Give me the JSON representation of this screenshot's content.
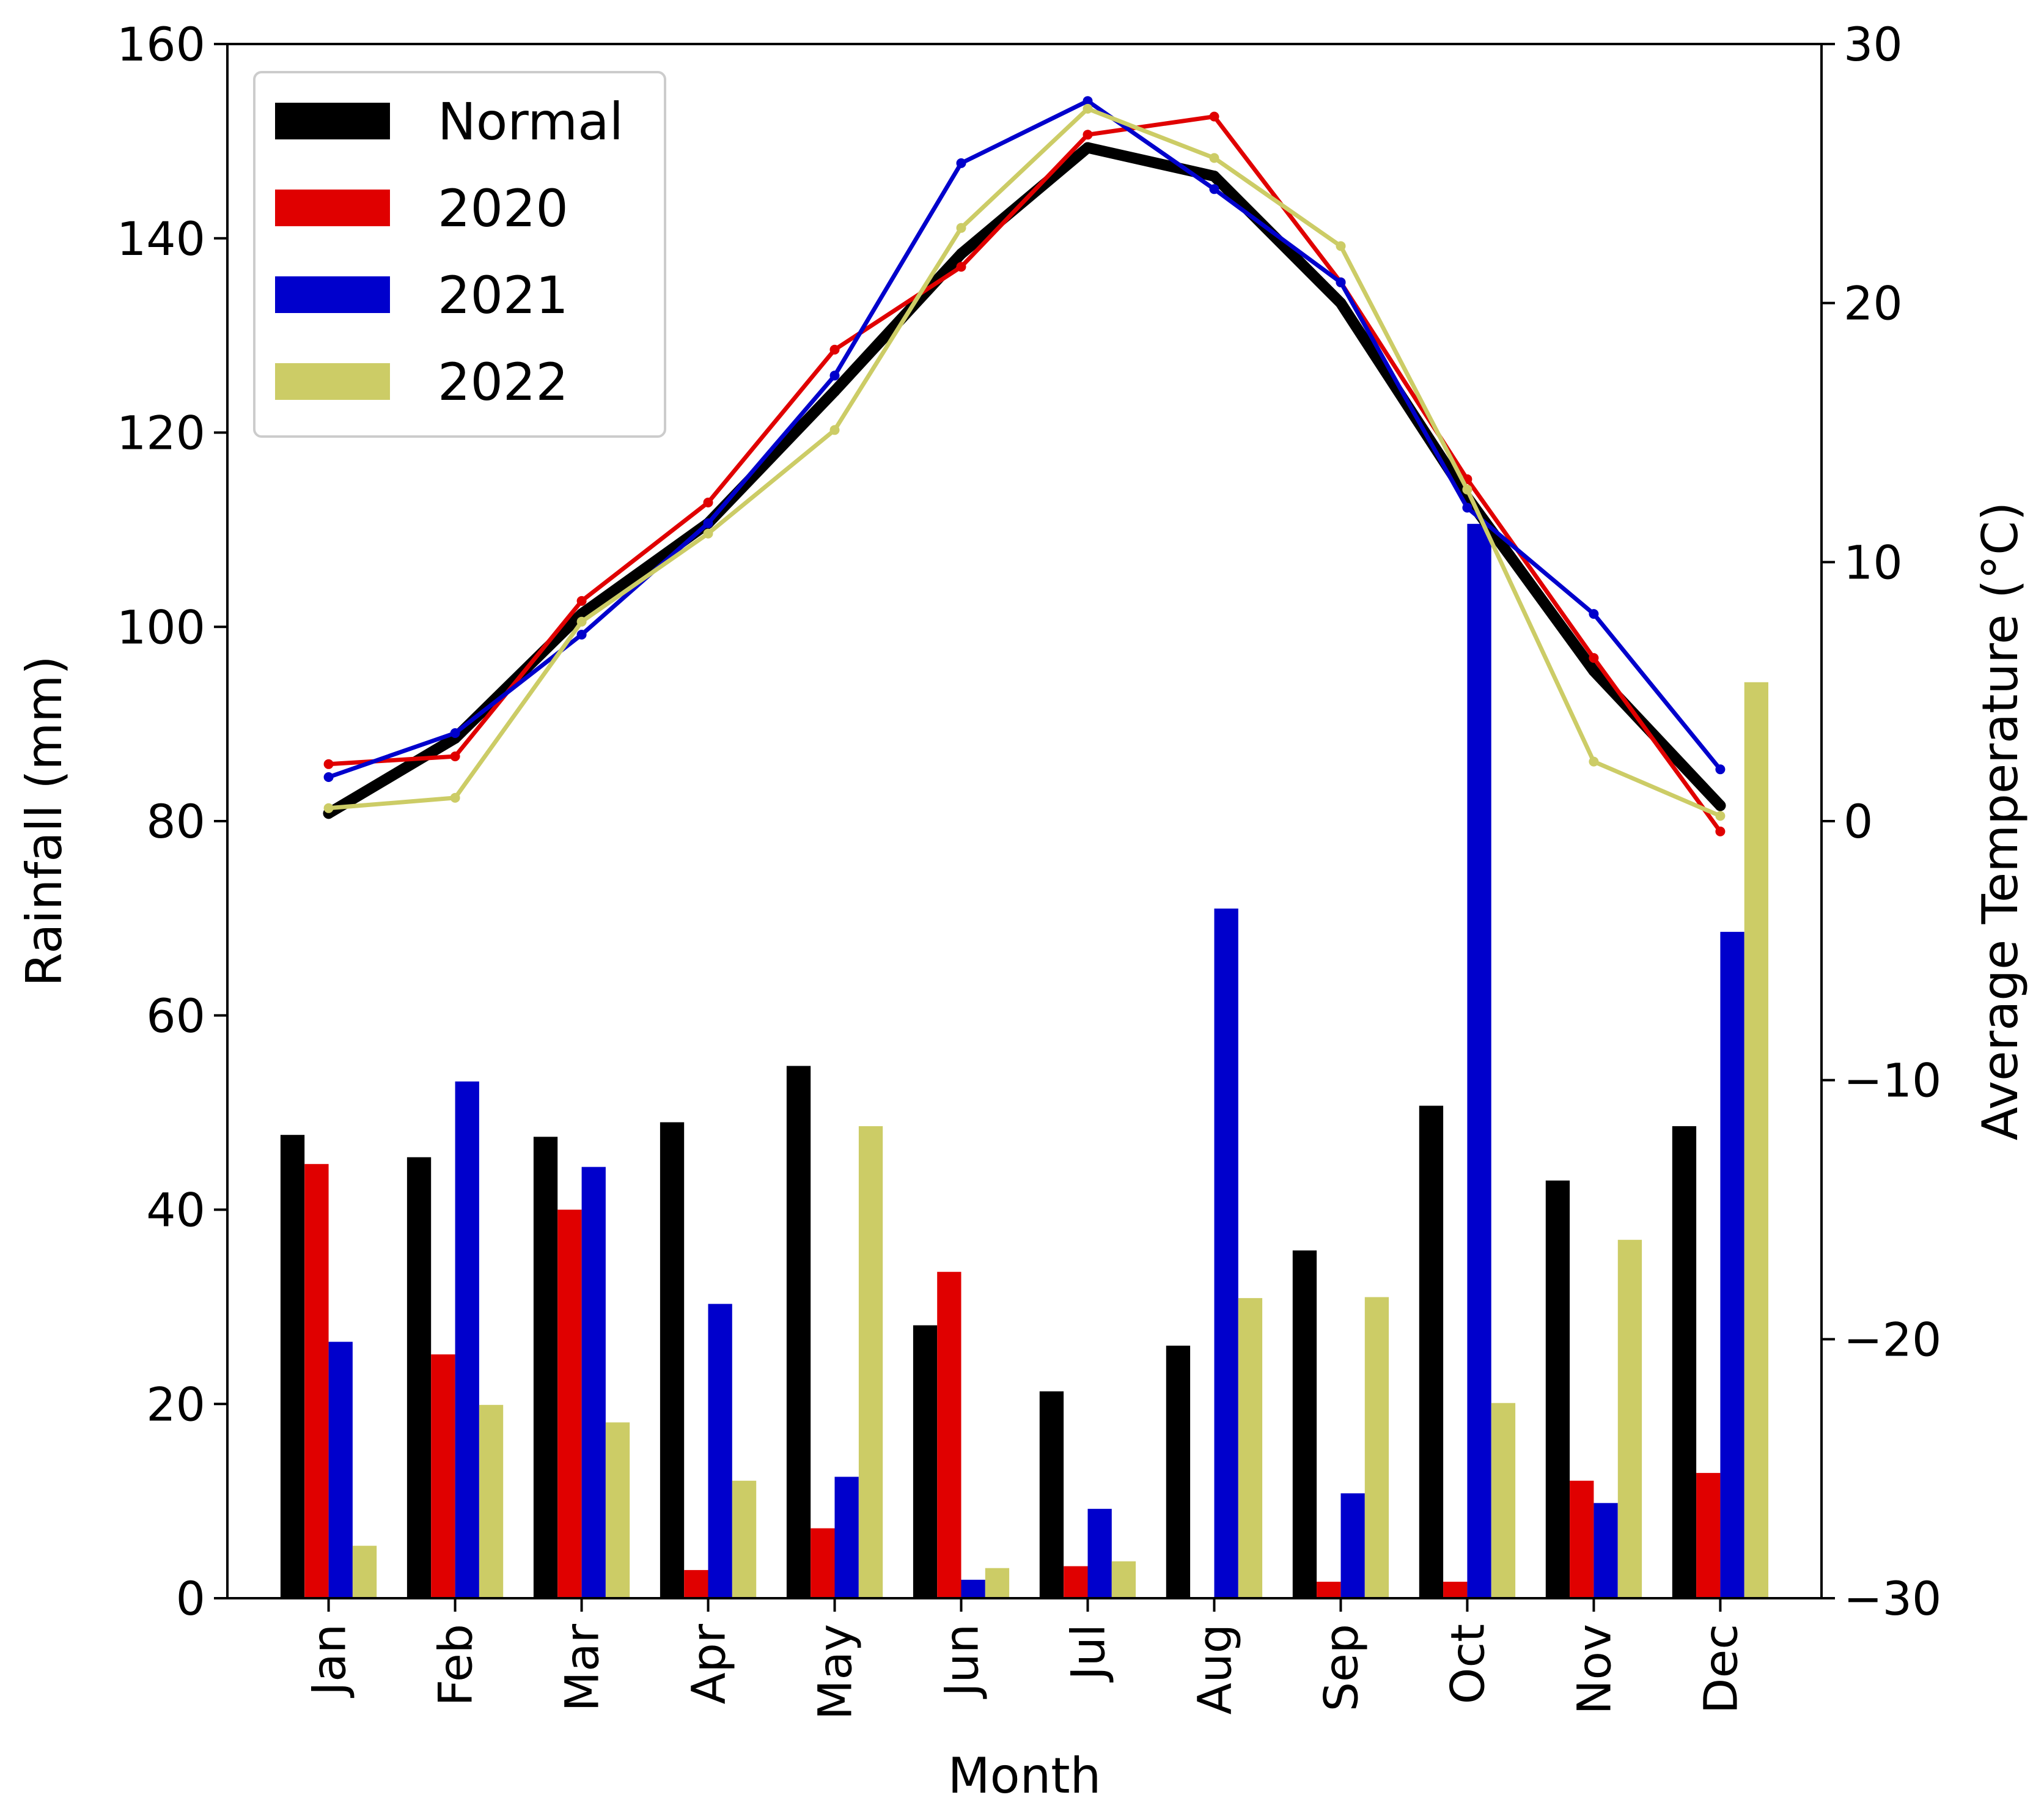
{
  "chart_data": {
    "type": "bar",
    "title": "",
    "xlabel": "Month",
    "ylabel": "Rainfall (mm)",
    "y2label": "Average Temperature (°C)",
    "ylim": [
      0,
      160
    ],
    "y2lim": [
      -30,
      30
    ],
    "yticks": [
      0,
      20,
      40,
      60,
      80,
      100,
      120,
      140,
      160
    ],
    "y2ticks": [
      -30,
      -20,
      -10,
      0,
      10,
      20,
      30
    ],
    "y2tick_labels": [
      "−30",
      "−20",
      "−10",
      "0",
      "10",
      "20",
      "30"
    ],
    "legend_position": "top-left",
    "categories": [
      "Jan",
      "Feb",
      "Mar",
      "Apr",
      "May",
      "Jun",
      "Jul",
      "Aug",
      "Sep",
      "Oct",
      "Nov",
      "Dec"
    ],
    "bar_series": [
      {
        "name": "Normal",
        "color": "#000000",
        "values": [
          47.7,
          45.4,
          47.5,
          49.0,
          54.8,
          28.1,
          21.3,
          26.0,
          35.8,
          50.7,
          43.0,
          48.6
        ]
      },
      {
        "name": "2020",
        "color": "#e00000",
        "values": [
          44.7,
          25.1,
          40.0,
          2.9,
          7.2,
          33.6,
          3.3,
          0.0,
          1.7,
          1.7,
          12.1,
          12.9
        ]
      },
      {
        "name": "2021",
        "color": "#0000cc",
        "values": [
          26.4,
          53.2,
          44.4,
          30.3,
          12.5,
          1.9,
          9.2,
          71.0,
          10.8,
          110.6,
          9.8,
          68.6
        ]
      },
      {
        "name": "2022",
        "color": "#cccc66",
        "values": [
          5.4,
          19.9,
          18.1,
          12.1,
          48.6,
          3.1,
          3.8,
          30.9,
          31.0,
          20.1,
          36.9,
          94.3
        ]
      }
    ],
    "line_series": [
      {
        "name": "Normal",
        "color": "#000000",
        "values": [
          0.3,
          3.2,
          8.0,
          11.5,
          16.6,
          21.9,
          26.0,
          24.9,
          20.0,
          12.5,
          5.8,
          0.6
        ]
      },
      {
        "name": "2020",
        "color": "#e00000",
        "values": [
          2.2,
          2.5,
          8.5,
          12.3,
          18.2,
          21.4,
          26.5,
          27.2,
          20.8,
          13.2,
          6.3,
          -0.4
        ]
      },
      {
        "name": "2021",
        "color": "#0000cc",
        "values": [
          1.7,
          3.4,
          7.2,
          11.5,
          17.2,
          25.4,
          27.8,
          24.4,
          20.8,
          12.1,
          8.0,
          2.0
        ]
      },
      {
        "name": "2022",
        "color": "#cccc66",
        "values": [
          0.5,
          0.9,
          7.7,
          11.1,
          15.1,
          22.9,
          27.5,
          25.6,
          22.2,
          12.8,
          2.3,
          0.2
        ]
      }
    ]
  }
}
